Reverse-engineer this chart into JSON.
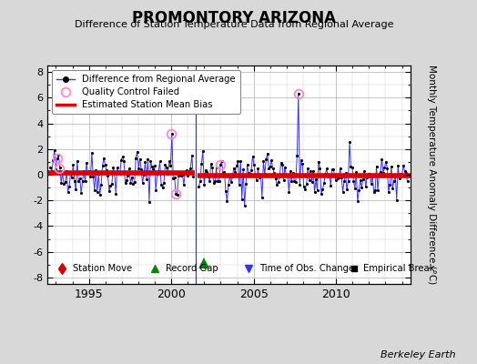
{
  "title": "PROMONTORY ARIZONA",
  "subtitle": "Difference of Station Temperature Data from Regional Average",
  "ylabel": "Monthly Temperature Anomaly Difference (°C)",
  "xlim": [
    1992.5,
    2014.5
  ],
  "ylim": [
    -8.5,
    8.5
  ],
  "yticks": [
    -8,
    -6,
    -4,
    -2,
    0,
    2,
    4,
    6,
    8
  ],
  "xticks": [
    1995,
    2000,
    2005,
    2010
  ],
  "bias_y1": 0.15,
  "bias_y2": -0.1,
  "bias_x1_start": 1992.5,
  "bias_x1_end": 2001.42,
  "bias_x2_start": 2001.58,
  "bias_x2_end": 2014.5,
  "gap_line_x": 2001.5,
  "record_gap_x": 2002.0,
  "record_gap_y": -6.9,
  "qc_fail_points": [
    [
      1993.1,
      1.3
    ],
    [
      1993.2,
      0.5
    ],
    [
      2000.0,
      3.2
    ],
    [
      2000.25,
      -1.5
    ],
    [
      2003.0,
      0.8
    ],
    [
      2007.75,
      6.3
    ]
  ],
  "background_color": "#d8d8d8",
  "plot_bg_color": "#ffffff",
  "line_color": "#3333ff",
  "bias_color": "#dd0000",
  "qc_color": "#ff88cc",
  "marker_color": "#000000",
  "gap_line_color": "#3333ff",
  "seed": 42,
  "n_seg1": 108,
  "n_seg2": 156,
  "start1": 1992.67,
  "end1": 2001.33,
  "start2": 2001.67,
  "end2": 2014.33,
  "mean1": 0.15,
  "mean2": -0.1,
  "std1": 0.85,
  "std2": 0.8
}
